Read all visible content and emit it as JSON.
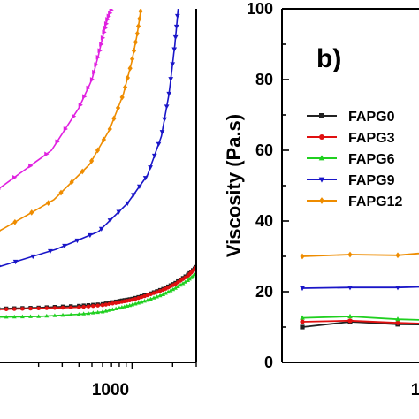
{
  "chart_data": [
    {
      "panel": "left",
      "type": "line",
      "xscale": "log",
      "xlim": [
        100,
        3000
      ],
      "ylim": [
        0,
        100
      ],
      "xticks": [
        1000
      ],
      "xticklabels": [
        "1000"
      ],
      "series": [
        {
          "color": "#e020e0",
          "marker": "triangle-right",
          "x": [
            100,
            250,
            400,
            500,
            560,
            610,
            650,
            700
          ],
          "y": [
            49,
            60,
            72,
            80,
            87,
            93,
            97,
            100
          ]
        },
        {
          "color": "#ee8c00",
          "marker": "diamond",
          "x": [
            100,
            260,
            480,
            680,
            860,
            990,
            1090,
            1160
          ],
          "y": [
            37,
            46,
            56,
            66,
            76,
            85,
            93,
            100
          ]
        },
        {
          "color": "#1a16c8",
          "marker": "triangle-down",
          "x": [
            100,
            270,
            560,
            920,
            1300,
            1650,
            1880,
            2080,
            2200
          ],
          "y": [
            27,
            32,
            37,
            45,
            53,
            64,
            76,
            90,
            100
          ]
        },
        {
          "color": "#222222",
          "marker": "square",
          "x": [
            100,
            200,
            400,
            600,
            800,
            1000,
            1300,
            1700,
            2100,
            2600,
            3000
          ],
          "y": [
            15.2,
            15.5,
            16,
            16.5,
            17.4,
            18,
            19.2,
            20.8,
            22.5,
            24.8,
            27
          ]
        },
        {
          "color": "#e01010",
          "marker": "circle",
          "x": [
            100,
            200,
            400,
            600,
            800,
            1000,
            1300,
            1700,
            2100,
            2600,
            3000
          ],
          "y": [
            15,
            15.3,
            15.6,
            16.2,
            17,
            17.7,
            19,
            20.5,
            22.2,
            24.5,
            26.8
          ]
        },
        {
          "color": "#20d020",
          "marker": "triangle",
          "x": [
            100,
            200,
            400,
            600,
            800,
            1000,
            1300,
            1700,
            2100,
            2600,
            3000
          ],
          "y": [
            12.8,
            13,
            13.6,
            14.3,
            15.4,
            16.3,
            17.6,
            19.2,
            21,
            23.2,
            25.2
          ]
        }
      ]
    },
    {
      "panel": "right",
      "type": "line",
      "panel_label": "b)",
      "ylabel": "Viscosity (Pa.s)",
      "ylim": [
        0,
        100
      ],
      "yticks": [
        0,
        20,
        40,
        60,
        80,
        100
      ],
      "xticklabels": [
        "1"
      ],
      "legend_position": "center-right",
      "series": [
        {
          "name": "FAPG0",
          "color": "#222222",
          "marker": "square",
          "x": [
            0,
            1,
            2,
            3
          ],
          "y": [
            10,
            11.5,
            10.8,
            10.6
          ]
        },
        {
          "name": "FAPG3",
          "color": "#e01010",
          "marker": "circle",
          "x": [
            0,
            1,
            2,
            3
          ],
          "y": [
            11.5,
            11.8,
            11.2,
            10.8
          ]
        },
        {
          "name": "FAPG6",
          "color": "#20d020",
          "marker": "triangle",
          "x": [
            0,
            1,
            2,
            3
          ],
          "y": [
            12.6,
            13,
            12.2,
            11.8
          ]
        },
        {
          "name": "FAPG9",
          "color": "#1a16c8",
          "marker": "triangle-down",
          "x": [
            0,
            1,
            2,
            3
          ],
          "y": [
            21,
            21.2,
            21.2,
            21.6
          ]
        },
        {
          "name": "FAPG12",
          "color": "#ee8c00",
          "marker": "diamond",
          "x": [
            0,
            1,
            2,
            3
          ],
          "y": [
            30,
            30.5,
            30.3,
            31.5
          ]
        }
      ]
    }
  ]
}
